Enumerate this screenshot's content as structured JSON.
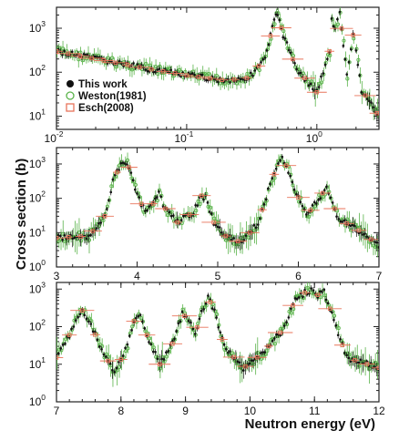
{
  "chart_data": [
    {
      "type": "scatter",
      "panel": "top",
      "xscale": "log",
      "yscale": "log",
      "xlim": [
        0.01,
        3
      ],
      "ylim": [
        5,
        3000
      ],
      "xticks": [
        0.01,
        0.1,
        1
      ],
      "xtick_labels": [
        "10",
        "10",
        "10"
      ],
      "xtick_exponents": [
        "-2",
        "-1",
        "0"
      ],
      "yticks": [
        10,
        100,
        1000
      ],
      "ytick_labels": [
        "10",
        "10",
        "10"
      ],
      "ytick_exponents": [
        "1",
        "2",
        "3"
      ],
      "legend": {
        "position": "lower-left",
        "entries": [
          "This work",
          "Weston(1981)",
          "Esch(2008)"
        ]
      },
      "series": [
        {
          "name": "This work",
          "x": [
            0.01,
            0.02,
            0.05,
            0.1,
            0.2,
            0.3,
            0.4,
            0.47,
            0.5,
            0.55,
            0.7,
            1.0,
            1.25,
            1.3,
            1.38,
            1.5,
            1.7,
            1.9,
            2.0,
            2.2,
            3.0
          ],
          "y": [
            300,
            200,
            120,
            85,
            65,
            75,
            200,
            1500,
            2200,
            700,
            120,
            35,
            300,
            1500,
            900,
            2300,
            80,
            700,
            300,
            40,
            10
          ]
        },
        {
          "name": "Weston(1981)",
          "x": [
            0.01,
            0.1,
            0.5,
            1.0,
            1.3,
            1.5,
            1.9
          ],
          "y": [
            300,
            85,
            2000,
            30,
            1200,
            2000,
            600
          ]
        },
        {
          "name": "Esch(2008)",
          "x": [
            0.01,
            0.1,
            0.5,
            1.0,
            1.3,
            1.5,
            1.9
          ],
          "y": [
            300,
            85,
            2100,
            35,
            1300,
            2100,
            650
          ]
        }
      ]
    },
    {
      "type": "scatter",
      "panel": "middle",
      "xscale": "linear",
      "yscale": "log",
      "xlim": [
        3,
        7
      ],
      "ylim": [
        1,
        3000
      ],
      "xticks": [
        3,
        4,
        5,
        6,
        7
      ],
      "xtick_labels": [
        "3",
        "4",
        "5",
        "6",
        "7"
      ],
      "yticks": [
        1,
        10,
        100,
        1000
      ],
      "ytick_labels": [
        "10",
        "10",
        "10",
        "10"
      ],
      "ytick_exponents": [
        "0",
        "1",
        "2",
        "3"
      ],
      "series": [
        {
          "name": "This work",
          "x": [
            3.0,
            3.4,
            3.6,
            3.7,
            3.8,
            3.85,
            3.9,
            4.0,
            4.1,
            4.2,
            4.27,
            4.35,
            4.5,
            4.7,
            4.8,
            4.85,
            4.95,
            5.1,
            5.3,
            5.5,
            5.65,
            5.75,
            5.8,
            5.85,
            5.95,
            6.1,
            6.25,
            6.35,
            6.5,
            6.8,
            7.0
          ],
          "y": [
            7,
            8,
            30,
            300,
            1100,
            1200,
            800,
            120,
            40,
            70,
            130,
            50,
            20,
            40,
            120,
            100,
            20,
            8,
            5,
            20,
            250,
            1000,
            1400,
            900,
            200,
            30,
            100,
            200,
            25,
            10,
            4
          ]
        }
      ]
    },
    {
      "type": "scatter",
      "panel": "bottom",
      "xscale": "linear",
      "yscale": "log",
      "xlim": [
        7,
        12
      ],
      "ylim": [
        1,
        1500
      ],
      "xticks": [
        7,
        8,
        9,
        10,
        11,
        12
      ],
      "xtick_labels": [
        "7",
        "8",
        "9",
        "10",
        "11",
        "12"
      ],
      "yticks": [
        1,
        10,
        100,
        1000
      ],
      "ytick_labels": [
        "10",
        "10",
        "10",
        "10"
      ],
      "ytick_exponents": [
        "0",
        "1",
        "2",
        "3"
      ],
      "series": [
        {
          "name": "This work",
          "x": [
            7.0,
            7.2,
            7.3,
            7.4,
            7.5,
            7.7,
            7.9,
            8.1,
            8.2,
            8.3,
            8.4,
            8.6,
            8.8,
            8.95,
            9.05,
            9.15,
            9.25,
            9.35,
            9.45,
            9.6,
            9.9,
            10.2,
            10.5,
            10.7,
            10.85,
            10.95,
            11.05,
            11.15,
            11.3,
            11.5,
            12.0
          ],
          "y": [
            15,
            60,
            150,
            270,
            150,
            25,
            6,
            30,
            140,
            200,
            60,
            10,
            35,
            220,
            150,
            60,
            250,
            600,
            250,
            30,
            8,
            20,
            80,
            500,
            800,
            900,
            700,
            850,
            150,
            15,
            8
          ]
        }
      ]
    }
  ],
  "axes": {
    "ylabel": "Cross section (b)",
    "xlabel": "Neutron energy (eV)"
  },
  "colors": {
    "this_work": "#111111",
    "weston": "#5ab34a",
    "esch": "#e8735a",
    "frame": "#222222"
  }
}
